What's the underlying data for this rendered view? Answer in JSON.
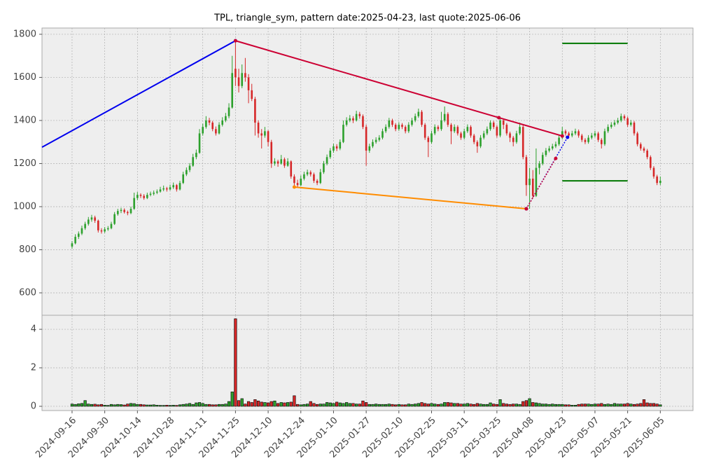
{
  "chart_data": {
    "type": "candlestick",
    "title": "TPL, triangle_sym, pattern date:2025-04-23, last quote:2025-06-06",
    "categories": [
      "2024-09-16",
      null,
      null,
      null,
      null,
      null,
      null,
      null,
      null,
      null,
      "2024-09-30",
      null,
      null,
      null,
      null,
      null,
      null,
      null,
      null,
      null,
      "2024-10-14",
      null,
      null,
      null,
      null,
      null,
      null,
      null,
      null,
      null,
      "2024-10-28",
      null,
      null,
      null,
      null,
      null,
      null,
      null,
      null,
      null,
      "2024-11-11",
      null,
      null,
      null,
      null,
      null,
      null,
      null,
      null,
      null,
      "2024-11-25",
      null,
      null,
      null,
      null,
      null,
      null,
      null,
      null,
      null,
      "2024-12-10",
      null,
      null,
      null,
      null,
      null,
      null,
      null,
      null,
      null,
      "2024-12-24",
      null,
      null,
      null,
      null,
      null,
      null,
      null,
      null,
      null,
      "2025-01-10",
      null,
      null,
      null,
      null,
      null,
      null,
      null,
      null,
      null,
      "2025-01-27",
      null,
      null,
      null,
      null,
      null,
      null,
      null,
      null,
      null,
      "2025-02-10",
      null,
      null,
      null,
      null,
      null,
      null,
      null,
      null,
      null,
      "2025-02-25",
      null,
      null,
      null,
      null,
      null,
      null,
      null,
      null,
      null,
      "2025-03-11",
      null,
      null,
      null,
      null,
      null,
      null,
      null,
      null,
      null,
      "2025-03-25",
      null,
      null,
      null,
      null,
      null,
      null,
      null,
      null,
      null,
      "2025-04-08",
      null,
      null,
      null,
      null,
      null,
      null,
      null,
      null,
      null,
      "2025-04-23",
      null,
      null,
      null,
      null,
      null,
      null,
      null,
      null,
      null,
      "2025-05-07",
      null,
      null,
      null,
      null,
      null,
      null,
      null,
      null,
      null,
      "2025-05-21",
      null,
      null,
      null,
      null,
      null,
      null,
      null,
      null,
      null,
      "2025-06-05"
    ],
    "ohlc": [
      [
        815,
        840,
        805,
        830
      ],
      [
        830,
        872,
        825,
        860
      ],
      [
        860,
        885,
        850,
        875
      ],
      [
        875,
        912,
        868,
        900
      ],
      [
        900,
        930,
        892,
        920
      ],
      [
        920,
        952,
        912,
        940
      ],
      [
        940,
        962,
        930,
        950
      ],
      [
        950,
        958,
        925,
        935
      ],
      [
        935,
        940,
        880,
        890
      ],
      [
        890,
        900,
        875,
        885
      ],
      [
        885,
        905,
        878,
        895
      ],
      [
        895,
        910,
        888,
        900
      ],
      [
        900,
        930,
        895,
        920
      ],
      [
        920,
        975,
        915,
        965
      ],
      [
        965,
        990,
        958,
        980
      ],
      [
        980,
        995,
        970,
        985
      ],
      [
        985,
        992,
        968,
        975
      ],
      [
        975,
        982,
        960,
        970
      ],
      [
        970,
        1000,
        965,
        990
      ],
      [
        990,
        1065,
        985,
        1040
      ],
      [
        1040,
        1068,
        1030,
        1055
      ],
      [
        1055,
        1062,
        1040,
        1050
      ],
      [
        1050,
        1058,
        1032,
        1040
      ],
      [
        1040,
        1065,
        1035,
        1055
      ],
      [
        1055,
        1070,
        1048,
        1060
      ],
      [
        1060,
        1075,
        1052,
        1065
      ],
      [
        1065,
        1080,
        1058,
        1070
      ],
      [
        1070,
        1092,
        1065,
        1080
      ],
      [
        1080,
        1098,
        1072,
        1085
      ],
      [
        1085,
        1092,
        1070,
        1080
      ],
      [
        1080,
        1102,
        1075,
        1090
      ],
      [
        1090,
        1112,
        1082,
        1100
      ],
      [
        1100,
        1105,
        1070,
        1080
      ],
      [
        1080,
        1120,
        1075,
        1110
      ],
      [
        1110,
        1162,
        1105,
        1150
      ],
      [
        1150,
        1182,
        1142,
        1170
      ],
      [
        1170,
        1202,
        1160,
        1190
      ],
      [
        1190,
        1245,
        1185,
        1230
      ],
      [
        1230,
        1265,
        1220,
        1250
      ],
      [
        1250,
        1360,
        1245,
        1340
      ],
      [
        1340,
        1385,
        1330,
        1370
      ],
      [
        1370,
        1420,
        1362,
        1400
      ],
      [
        1400,
        1412,
        1378,
        1390
      ],
      [
        1390,
        1398,
        1350,
        1360
      ],
      [
        1360,
        1372,
        1330,
        1340
      ],
      [
        1340,
        1392,
        1335,
        1380
      ],
      [
        1380,
        1415,
        1372,
        1400
      ],
      [
        1400,
        1435,
        1392,
        1420
      ],
      [
        1420,
        1480,
        1410,
        1460
      ],
      [
        1460,
        1700,
        1455,
        1620
      ],
      [
        1640,
        1770,
        1560,
        1600
      ],
      [
        1600,
        1640,
        1530,
        1560
      ],
      [
        1560,
        1660,
        1550,
        1620
      ],
      [
        1620,
        1690,
        1580,
        1600
      ],
      [
        1600,
        1615,
        1480,
        1540
      ],
      [
        1540,
        1570,
        1490,
        1500
      ],
      [
        1500,
        1510,
        1330,
        1390
      ],
      [
        1390,
        1400,
        1320,
        1340
      ],
      [
        1340,
        1360,
        1270,
        1330
      ],
      [
        1330,
        1370,
        1320,
        1350
      ],
      [
        1350,
        1355,
        1280,
        1300
      ],
      [
        1300,
        1310,
        1180,
        1200
      ],
      [
        1200,
        1225,
        1190,
        1210
      ],
      [
        1210,
        1218,
        1185,
        1200
      ],
      [
        1200,
        1240,
        1195,
        1220
      ],
      [
        1220,
        1228,
        1180,
        1190
      ],
      [
        1190,
        1225,
        1185,
        1210
      ],
      [
        1210,
        1215,
        1130,
        1140
      ],
      [
        1140,
        1150,
        1095,
        1110
      ],
      [
        1110,
        1125,
        1088,
        1100
      ],
      [
        1100,
        1145,
        1095,
        1130
      ],
      [
        1130,
        1162,
        1122,
        1150
      ],
      [
        1150,
        1172,
        1142,
        1160
      ],
      [
        1160,
        1168,
        1140,
        1150
      ],
      [
        1150,
        1158,
        1110,
        1120
      ],
      [
        1120,
        1128,
        1100,
        1110
      ],
      [
        1110,
        1175,
        1105,
        1160
      ],
      [
        1160,
        1212,
        1152,
        1200
      ],
      [
        1200,
        1242,
        1192,
        1230
      ],
      [
        1230,
        1272,
        1222,
        1260
      ],
      [
        1260,
        1292,
        1250,
        1280
      ],
      [
        1280,
        1290,
        1258,
        1270
      ],
      [
        1270,
        1312,
        1262,
        1300
      ],
      [
        1300,
        1400,
        1295,
        1380
      ],
      [
        1380,
        1415,
        1372,
        1400
      ],
      [
        1400,
        1425,
        1392,
        1410
      ],
      [
        1410,
        1420,
        1388,
        1400
      ],
      [
        1400,
        1445,
        1395,
        1430
      ],
      [
        1430,
        1440,
        1408,
        1420
      ],
      [
        1420,
        1428,
        1360,
        1370
      ],
      [
        1370,
        1380,
        1190,
        1260
      ],
      [
        1260,
        1292,
        1250,
        1280
      ],
      [
        1280,
        1312,
        1272,
        1300
      ],
      [
        1300,
        1322,
        1292,
        1310
      ],
      [
        1310,
        1332,
        1302,
        1320
      ],
      [
        1320,
        1362,
        1312,
        1350
      ],
      [
        1350,
        1382,
        1342,
        1370
      ],
      [
        1370,
        1412,
        1362,
        1400
      ],
      [
        1400,
        1408,
        1370,
        1380
      ],
      [
        1380,
        1388,
        1350,
        1360
      ],
      [
        1360,
        1392,
        1352,
        1380
      ],
      [
        1380,
        1388,
        1360,
        1370
      ],
      [
        1370,
        1378,
        1340,
        1350
      ],
      [
        1350,
        1392,
        1342,
        1380
      ],
      [
        1380,
        1412,
        1372,
        1400
      ],
      [
        1400,
        1432,
        1392,
        1420
      ],
      [
        1420,
        1455,
        1412,
        1440
      ],
      [
        1440,
        1448,
        1370,
        1380
      ],
      [
        1380,
        1388,
        1310,
        1320
      ],
      [
        1320,
        1328,
        1230,
        1300
      ],
      [
        1300,
        1352,
        1292,
        1340
      ],
      [
        1340,
        1382,
        1332,
        1370
      ],
      [
        1370,
        1378,
        1350,
        1360
      ],
      [
        1360,
        1440,
        1352,
        1400
      ],
      [
        1400,
        1465,
        1392,
        1430
      ],
      [
        1430,
        1438,
        1370,
        1380
      ],
      [
        1380,
        1388,
        1290,
        1350
      ],
      [
        1350,
        1382,
        1342,
        1370
      ],
      [
        1370,
        1378,
        1330,
        1340
      ],
      [
        1340,
        1348,
        1310,
        1320
      ],
      [
        1320,
        1362,
        1312,
        1350
      ],
      [
        1350,
        1382,
        1342,
        1370
      ],
      [
        1370,
        1378,
        1320,
        1330
      ],
      [
        1330,
        1338,
        1290,
        1300
      ],
      [
        1300,
        1308,
        1250,
        1280
      ],
      [
        1280,
        1332,
        1272,
        1320
      ],
      [
        1320,
        1352,
        1312,
        1340
      ],
      [
        1340,
        1372,
        1332,
        1360
      ],
      [
        1360,
        1400,
        1352,
        1390
      ],
      [
        1390,
        1398,
        1360,
        1370
      ],
      [
        1370,
        1378,
        1320,
        1330
      ],
      [
        1330,
        1412,
        1322,
        1400
      ],
      [
        1400,
        1408,
        1360,
        1380
      ],
      [
        1380,
        1388,
        1330,
        1340
      ],
      [
        1340,
        1348,
        1300,
        1320
      ],
      [
        1320,
        1328,
        1280,
        1300
      ],
      [
        1300,
        1352,
        1292,
        1340
      ],
      [
        1340,
        1390,
        1332,
        1370
      ],
      [
        1370,
        1378,
        1220,
        1230
      ],
      [
        1230,
        1240,
        1050,
        1100
      ],
      [
        1100,
        1180,
        990,
        1130
      ],
      [
        1130,
        1170,
        1040,
        1050
      ],
      [
        1050,
        1270,
        1045,
        1180
      ],
      [
        1180,
        1212,
        1150,
        1200
      ],
      [
        1200,
        1252,
        1192,
        1240
      ],
      [
        1240,
        1272,
        1232,
        1260
      ],
      [
        1260,
        1282,
        1252,
        1270
      ],
      [
        1270,
        1292,
        1262,
        1280
      ],
      [
        1280,
        1302,
        1272,
        1290
      ],
      [
        1290,
        1332,
        1282,
        1320
      ],
      [
        1320,
        1370,
        1312,
        1350
      ],
      [
        1350,
        1358,
        1330,
        1340
      ],
      [
        1340,
        1348,
        1320,
        1330
      ],
      [
        1330,
        1352,
        1322,
        1340
      ],
      [
        1340,
        1362,
        1332,
        1350
      ],
      [
        1350,
        1358,
        1320,
        1330
      ],
      [
        1330,
        1338,
        1300,
        1310
      ],
      [
        1310,
        1318,
        1290,
        1300
      ],
      [
        1300,
        1332,
        1292,
        1320
      ],
      [
        1320,
        1342,
        1312,
        1330
      ],
      [
        1330,
        1352,
        1322,
        1340
      ],
      [
        1340,
        1348,
        1300,
        1310
      ],
      [
        1310,
        1318,
        1270,
        1290
      ],
      [
        1290,
        1362,
        1282,
        1350
      ],
      [
        1350,
        1382,
        1342,
        1370
      ],
      [
        1370,
        1392,
        1362,
        1380
      ],
      [
        1380,
        1402,
        1372,
        1390
      ],
      [
        1390,
        1412,
        1382,
        1400
      ],
      [
        1400,
        1432,
        1392,
        1420
      ],
      [
        1420,
        1428,
        1400,
        1410
      ],
      [
        1410,
        1418,
        1370,
        1380
      ],
      [
        1380,
        1402,
        1372,
        1390
      ],
      [
        1390,
        1398,
        1330,
        1340
      ],
      [
        1340,
        1348,
        1280,
        1290
      ],
      [
        1290,
        1298,
        1260,
        1270
      ],
      [
        1270,
        1278,
        1250,
        1260
      ],
      [
        1260,
        1268,
        1220,
        1230
      ],
      [
        1230,
        1238,
        1170,
        1180
      ],
      [
        1180,
        1188,
        1130,
        1140
      ],
      [
        1140,
        1148,
        1100,
        1110
      ],
      [
        1110,
        1140,
        1100,
        1120
      ]
    ],
    "up_color": "#2ca02c",
    "down_color": "#d62728",
    "xlim": [
      -9.2,
      190
    ],
    "ylim": [
      496,
      1829
    ],
    "yticks": [
      600,
      800,
      1000,
      1200,
      1400,
      1600,
      1800
    ],
    "grid": true,
    "lines": [
      {
        "color": "#0000ee",
        "style": "solid",
        "x": [
          -9.2,
          50
        ],
        "y": [
          1276,
          1770
        ]
      },
      {
        "color": "#cc0033",
        "style": "solid",
        "x": [
          50,
          130.6,
          150
        ],
        "y": [
          1770,
          1413,
          1328
        ]
      },
      {
        "color": "#ff8c00",
        "style": "solid",
        "x": [
          68,
          139
        ],
        "y": [
          1091,
          990
        ]
      },
      {
        "color": "#0000ee",
        "style": "dotted",
        "x": [
          139,
          151.6
        ],
        "y": [
          990,
          1322
        ]
      },
      {
        "color": "#cc0033",
        "style": "dotted",
        "x": [
          139,
          148
        ],
        "y": [
          990,
          1224
        ]
      },
      {
        "color": "#007700",
        "style": "solid",
        "x": [
          150,
          170
        ],
        "y": [
          1758,
          1758
        ]
      },
      {
        "color": "#007700",
        "style": "solid",
        "x": [
          150,
          170
        ],
        "y": [
          1120,
          1120
        ]
      }
    ],
    "volume": {
      "values": [
        0.12,
        0.1,
        0.13,
        0.15,
        0.3,
        0.12,
        0.1,
        0.11,
        0.08,
        0.1,
        0.06,
        0.05,
        0.1,
        0.08,
        0.1,
        0.09,
        0.07,
        0.12,
        0.15,
        0.14,
        0.1,
        0.1,
        0.08,
        0.07,
        0.07,
        0.08,
        0.06,
        0.05,
        0.05,
        0.06,
        0.05,
        0.06,
        0.05,
        0.08,
        0.1,
        0.12,
        0.15,
        0.1,
        0.18,
        0.2,
        0.15,
        0.1,
        0.1,
        0.08,
        0.08,
        0.1,
        0.1,
        0.12,
        0.25,
        0.75,
        4.55,
        0.3,
        0.4,
        0.12,
        0.25,
        0.2,
        0.35,
        0.28,
        0.22,
        0.2,
        0.18,
        0.25,
        0.28,
        0.15,
        0.2,
        0.18,
        0.2,
        0.22,
        0.55,
        0.1,
        0.08,
        0.1,
        0.12,
        0.25,
        0.15,
        0.1,
        0.12,
        0.12,
        0.2,
        0.18,
        0.15,
        0.22,
        0.18,
        0.15,
        0.2,
        0.15,
        0.15,
        0.12,
        0.12,
        0.28,
        0.2,
        0.1,
        0.1,
        0.12,
        0.1,
        0.1,
        0.1,
        0.12,
        0.1,
        0.08,
        0.1,
        0.08,
        0.08,
        0.12,
        0.1,
        0.12,
        0.15,
        0.2,
        0.15,
        0.12,
        0.15,
        0.12,
        0.1,
        0.12,
        0.2,
        0.2,
        0.18,
        0.15,
        0.15,
        0.12,
        0.12,
        0.15,
        0.12,
        0.1,
        0.15,
        0.12,
        0.1,
        0.1,
        0.18,
        0.12,
        0.1,
        0.35,
        0.15,
        0.12,
        0.1,
        0.12,
        0.12,
        0.1,
        0.25,
        0.3,
        0.4,
        0.2,
        0.18,
        0.15,
        0.12,
        0.12,
        0.1,
        0.12,
        0.1,
        0.1,
        0.1,
        0.08,
        0.08,
        0.06,
        0.06,
        0.1,
        0.12,
        0.12,
        0.12,
        0.1,
        0.12,
        0.12,
        0.15,
        0.1,
        0.12,
        0.1,
        0.15,
        0.12,
        0.12,
        0.12,
        0.15,
        0.12,
        0.1,
        0.12,
        0.15,
        0.35,
        0.18,
        0.15,
        0.15,
        0.12,
        0.08
      ],
      "ylim": [
        -0.22,
        4.73
      ],
      "yticks": [
        0,
        2,
        4
      ]
    }
  }
}
